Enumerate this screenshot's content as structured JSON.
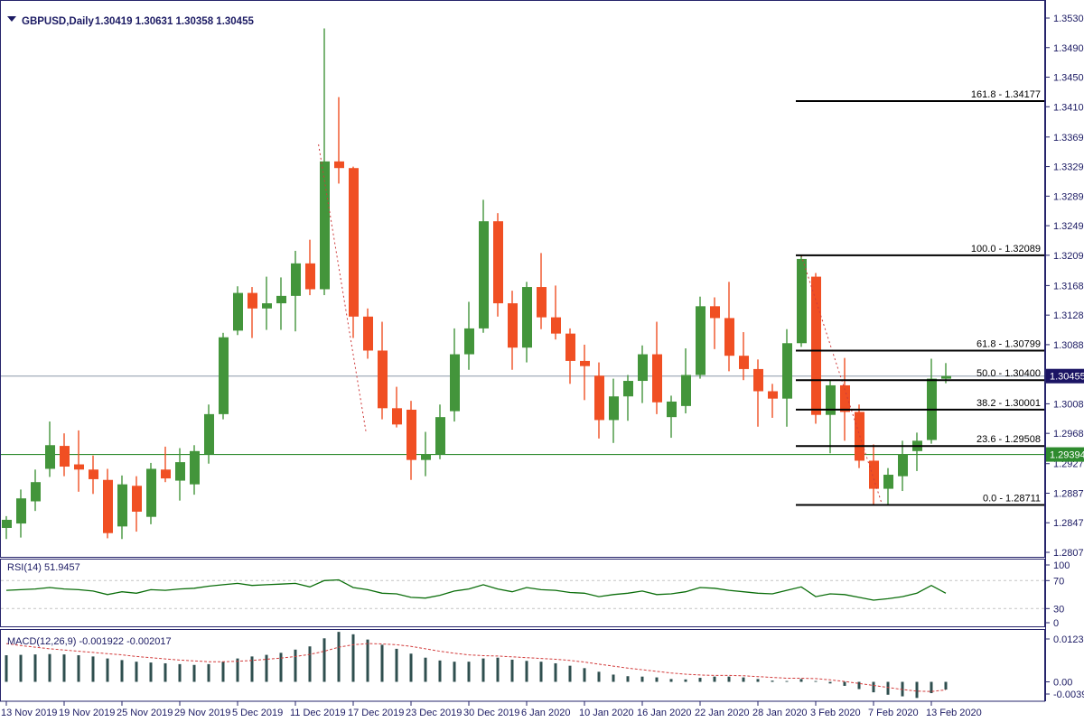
{
  "window": {
    "title_symbol": "GBPUSD,Daily",
    "title_ohlc": "1.30419 1.30631 1.30358 1.30455"
  },
  "colors": {
    "bull": "#43953B",
    "bear": "#F04F23",
    "macd_bar": "#2F4F4F",
    "rsi_line": "#0B6E0B",
    "signal_line": "#D23B3B",
    "axis_text": "#1B1A63",
    "panel_border": "#26246B",
    "fib_line": "#000000",
    "bid_line": "#8A97A8",
    "bid_box": "#1B1464",
    "green_line": "#2E8B2E",
    "level_dash": "#C3C3C3",
    "trend_dash": "#CE3A3A"
  },
  "chart_data": {
    "type": "candlestick",
    "symbol": "GBPUSD",
    "timeframe": "Daily",
    "last_ohlc": {
      "open": "1.30419",
      "high": "1.30631",
      "low": "1.30358",
      "close": "1.30455"
    },
    "price_axis_ticks": [
      "1.35300",
      "1.34900",
      "1.34500",
      "1.34100",
      "1.33690",
      "1.33290",
      "1.32890",
      "1.32490",
      "1.32090",
      "1.31680",
      "1.31280",
      "1.30880",
      "1.30080",
      "1.29680",
      "1.29270",
      "1.28870",
      "1.28470",
      "1.28070"
    ],
    "price_marker_bid": {
      "label": "1.30455",
      "value": 1.30455
    },
    "price_marker_line": {
      "label": "1.29394",
      "value": 1.29394
    },
    "x_labels": [
      {
        "label": "13 Nov 2019",
        "index": 0
      },
      {
        "label": "19 Nov 2019",
        "index": 4
      },
      {
        "label": "25 Nov 2019",
        "index": 8
      },
      {
        "label": "29 Nov 2019",
        "index": 12
      },
      {
        "label": "5 Dec 2019",
        "index": 16
      },
      {
        "label": "11 Dec 2019",
        "index": 20
      },
      {
        "label": "17 Dec 2019",
        "index": 24
      },
      {
        "label": "23 Dec 2019",
        "index": 28
      },
      {
        "label": "30 Dec 2019",
        "index": 32
      },
      {
        "label": "6 Jan 2020",
        "index": 36
      },
      {
        "label": "10 Jan 2020",
        "index": 40
      },
      {
        "label": "16 Jan 2020",
        "index": 44
      },
      {
        "label": "22 Jan 2020",
        "index": 48
      },
      {
        "label": "28 Jan 2020",
        "index": 52
      },
      {
        "label": "3 Feb 2020",
        "index": 56
      },
      {
        "label": "7 Feb 2020",
        "index": 60
      },
      {
        "label": "13 Feb 2020",
        "index": 64
      }
    ],
    "candles": [
      [
        1.284,
        1.2856,
        1.2825,
        1.2851
      ],
      [
        1.2846,
        1.2892,
        1.2827,
        1.288
      ],
      [
        1.2876,
        1.2919,
        1.2863,
        1.2902
      ],
      [
        1.292,
        1.2984,
        1.2909,
        1.2952
      ],
      [
        1.2951,
        1.2968,
        1.291,
        1.2923
      ],
      [
        1.2926,
        1.2972,
        1.2889,
        1.2919
      ],
      [
        1.2919,
        1.2938,
        1.2886,
        1.2906
      ],
      [
        1.2905,
        1.292,
        1.2826,
        1.2833
      ],
      [
        1.2842,
        1.2911,
        1.2825,
        1.2899
      ],
      [
        1.2897,
        1.291,
        1.2835,
        1.2862
      ],
      [
        1.2855,
        1.2928,
        1.2845,
        1.292
      ],
      [
        1.2919,
        1.295,
        1.2902,
        1.2907
      ],
      [
        1.2904,
        1.2948,
        1.2877,
        1.2929
      ],
      [
        1.2899,
        1.2952,
        1.2885,
        1.2944
      ],
      [
        1.294,
        1.3007,
        1.2927,
        1.2994
      ],
      [
        1.2994,
        1.3104,
        1.2987,
        1.3098
      ],
      [
        1.3107,
        1.3167,
        1.3101,
        1.3158
      ],
      [
        1.3158,
        1.3166,
        1.3097,
        1.3137
      ],
      [
        1.3137,
        1.318,
        1.3108,
        1.3144
      ],
      [
        1.3144,
        1.3179,
        1.3108,
        1.3154
      ],
      [
        1.3154,
        1.3215,
        1.3106,
        1.3198
      ],
      [
        1.3198,
        1.323,
        1.3155,
        1.3163
      ],
      [
        1.3163,
        1.3516,
        1.3155,
        1.3336
      ],
      [
        1.3336,
        1.3423,
        1.3306,
        1.3327
      ],
      [
        1.3327,
        1.3329,
        1.3097,
        1.3126
      ],
      [
        1.3126,
        1.3137,
        1.3069,
        1.308
      ],
      [
        1.308,
        1.3119,
        1.2987,
        1.3002
      ],
      [
        1.3002,
        1.3031,
        1.2976,
        1.298
      ],
      [
        1.3,
        1.3012,
        1.2905,
        1.2932
      ],
      [
        1.2932,
        1.297,
        1.291,
        1.294
      ],
      [
        1.294,
        1.3007,
        1.2933,
        1.299
      ],
      [
        1.2998,
        1.311,
        1.2984,
        1.3075
      ],
      [
        1.3075,
        1.3146,
        1.3054,
        1.311
      ],
      [
        1.311,
        1.3284,
        1.3104,
        1.3255
      ],
      [
        1.3255,
        1.3266,
        1.3126,
        1.3144
      ],
      [
        1.3144,
        1.3161,
        1.3054,
        1.3084
      ],
      [
        1.3084,
        1.3173,
        1.3064,
        1.3166
      ],
      [
        1.3166,
        1.3212,
        1.3109,
        1.3125
      ],
      [
        1.3125,
        1.3168,
        1.3095,
        1.3103
      ],
      [
        1.3103,
        1.311,
        1.3035,
        1.3066
      ],
      [
        1.3066,
        1.3088,
        1.3013,
        1.3059
      ],
      [
        1.3046,
        1.3064,
        1.2961,
        1.2986
      ],
      [
        1.2986,
        1.3042,
        1.2955,
        1.3018
      ],
      [
        1.3018,
        1.3047,
        1.2985,
        1.3039
      ],
      [
        1.3039,
        1.3087,
        1.3009,
        1.3075
      ],
      [
        1.3075,
        1.3119,
        1.2994,
        1.301
      ],
      [
        1.299,
        1.3019,
        1.2962,
        1.3011
      ],
      [
        1.3005,
        1.3083,
        1.2995,
        1.3047
      ],
      [
        1.3047,
        1.3153,
        1.3042,
        1.314
      ],
      [
        1.314,
        1.3152,
        1.3082,
        1.3124
      ],
      [
        1.3124,
        1.3173,
        1.3052,
        1.3073
      ],
      [
        1.3073,
        1.3105,
        1.304,
        1.3055
      ],
      [
        1.3055,
        1.3068,
        1.2977,
        1.3025
      ],
      [
        1.3025,
        1.3035,
        1.2989,
        1.3015
      ],
      [
        1.3015,
        1.3109,
        1.2977,
        1.309
      ],
      [
        1.309,
        1.3209,
        1.3085,
        1.3204
      ],
      [
        1.318,
        1.3185,
        1.2981,
        1.2993
      ],
      [
        1.2993,
        1.304,
        1.2941,
        1.3033
      ],
      [
        1.3033,
        1.307,
        1.2958,
        1.2997
      ],
      [
        1.2997,
        1.3007,
        1.2921,
        1.2931
      ],
      [
        1.2931,
        1.2953,
        1.2872,
        1.2893
      ],
      [
        1.2893,
        1.2921,
        1.2872,
        1.2912
      ],
      [
        1.291,
        1.2958,
        1.289,
        1.294
      ],
      [
        1.2944,
        1.2969,
        1.2917,
        1.2958
      ],
      [
        1.2959,
        1.3069,
        1.2954,
        1.3042
      ],
      [
        1.30419,
        1.30631,
        1.30358,
        1.30455
      ]
    ],
    "fib_levels": [
      {
        "label": "161.8 - 1.34177",
        "value": 1.34177
      },
      {
        "label": "100.0 - 1.32089",
        "value": 1.32089
      },
      {
        "label": "61.8 - 1.30799",
        "value": 1.30799
      },
      {
        "label": "50.0 - 1.30400",
        "value": 1.304
      },
      {
        "label": "38.2 - 1.30001",
        "value": 1.30001
      },
      {
        "label": "23.6 - 1.29508",
        "value": 1.29508
      },
      {
        "label": "0.0 - 1.28711",
        "value": 1.28711
      }
    ],
    "trend_dashes": [
      {
        "i1": 21.6,
        "p1": 1.3359,
        "i2": 24.9,
        "p2": 1.2968
      },
      {
        "i1": 55.0,
        "p1": 1.32089,
        "i2": 60.6,
        "p2": 1.28711
      }
    ],
    "rsi": {
      "label": "RSI(14) 51.9457",
      "current": 51.9457,
      "axis_labels": [
        "100",
        "70",
        "30",
        "0"
      ],
      "axis_values": [
        100,
        70,
        30,
        0
      ],
      "dashed_levels": [
        70,
        30
      ],
      "values": [
        56,
        57,
        58,
        60,
        58,
        57,
        55,
        50,
        54,
        52,
        57,
        56,
        58,
        59,
        62,
        64,
        66,
        63,
        64,
        65,
        66,
        61,
        70,
        71,
        60,
        57,
        52,
        51,
        46,
        45,
        49,
        55,
        58,
        64,
        58,
        54,
        60,
        57,
        56,
        53,
        52,
        47,
        50,
        52,
        55,
        50,
        51,
        54,
        60,
        59,
        56,
        54,
        52,
        51,
        56,
        61,
        47,
        51,
        50,
        46,
        42,
        44,
        47,
        52,
        63,
        51.9
      ]
    },
    "macd": {
      "label": "MACD(12,26,9) -0.001922 -0.002017",
      "current_main": -0.001922,
      "current_signal": -0.002017,
      "axis_labels": [
        "0.012384",
        "0.00",
        "-0.003958"
      ],
      "axis_values": [
        0.012384,
        0,
        -0.003958
      ],
      "hist": [
        0.0066,
        0.0067,
        0.0068,
        0.0069,
        0.0068,
        0.0066,
        0.0063,
        0.0058,
        0.0054,
        0.005,
        0.0048,
        0.0046,
        0.0044,
        0.0042,
        0.0044,
        0.005,
        0.0058,
        0.0063,
        0.0067,
        0.0072,
        0.008,
        0.0088,
        0.0108,
        0.0124,
        0.0118,
        0.0105,
        0.0092,
        0.0082,
        0.007,
        0.006,
        0.0053,
        0.005,
        0.005,
        0.0058,
        0.006,
        0.0055,
        0.0052,
        0.005,
        0.0046,
        0.004,
        0.0034,
        0.0025,
        0.0018,
        0.0014,
        0.0013,
        0.0011,
        0.0007,
        0.0006,
        0.001,
        0.0013,
        0.0013,
        0.0011,
        0.0007,
        0.0003,
        0.0002,
        0.0007,
        0.0002,
        -0.0004,
        -0.001,
        -0.0018,
        -0.0026,
        -0.0032,
        -0.0036,
        -0.004,
        -0.0028,
        -0.001922
      ],
      "signal": [
        0.0095,
        0.009,
        0.0086,
        0.0082,
        0.0079,
        0.0076,
        0.0073,
        0.007,
        0.0067,
        0.0063,
        0.006,
        0.0057,
        0.0054,
        0.0052,
        0.005,
        0.005,
        0.0051,
        0.0053,
        0.0056,
        0.0059,
        0.0063,
        0.0068,
        0.0076,
        0.0086,
        0.0092,
        0.0095,
        0.0094,
        0.0092,
        0.0088,
        0.0082,
        0.0076,
        0.0071,
        0.0067,
        0.0065,
        0.0064,
        0.0062,
        0.006,
        0.0058,
        0.0056,
        0.0053,
        0.0049,
        0.0044,
        0.0039,
        0.0034,
        0.003,
        0.0026,
        0.0022,
        0.0019,
        0.0017,
        0.0016,
        0.0016,
        0.0015,
        0.0013,
        0.0011,
        0.0009,
        0.0009,
        0.0008,
        0.0005,
        0.0001,
        -0.0004,
        -0.0009,
        -0.0014,
        -0.0019,
        -0.0023,
        -0.0024,
        -0.002
      ]
    }
  }
}
